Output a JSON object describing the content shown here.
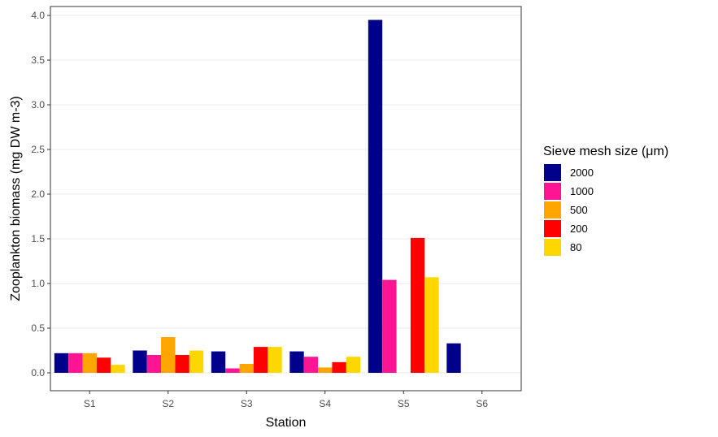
{
  "chart_data": {
    "type": "bar",
    "xlabel": "Station",
    "ylabel": "Zooplankton biomass (mg DW m-3)",
    "categories": [
      "S1",
      "S2",
      "S3",
      "S4",
      "S5",
      "S6"
    ],
    "ylim": [
      -0.2,
      4.1
    ],
    "yticks": [
      "0.0",
      "0.5",
      "1.0",
      "1.5",
      "2.0",
      "2.5",
      "3.0",
      "3.5",
      "4.0"
    ],
    "grid": true,
    "legend": {
      "title": "Sieve mesh size (μm)",
      "position": "right"
    },
    "series": [
      {
        "name": "2000",
        "color": "#00008B",
        "values": [
          0.22,
          0.25,
          0.24,
          0.24,
          3.95,
          0.33
        ]
      },
      {
        "name": "1000",
        "color": "#FF1493",
        "values": [
          0.22,
          0.2,
          0.05,
          0.18,
          1.04,
          null
        ]
      },
      {
        "name": "500",
        "color": "#FFA500",
        "values": [
          0.22,
          0.4,
          0.1,
          0.06,
          null,
          null
        ]
      },
      {
        "name": "200",
        "color": "#FF0000",
        "values": [
          0.17,
          0.2,
          0.29,
          0.12,
          1.51,
          null
        ]
      },
      {
        "name": "80",
        "color": "#FFD700",
        "values": [
          0.09,
          0.25,
          0.29,
          0.18,
          1.07,
          null
        ]
      }
    ]
  }
}
